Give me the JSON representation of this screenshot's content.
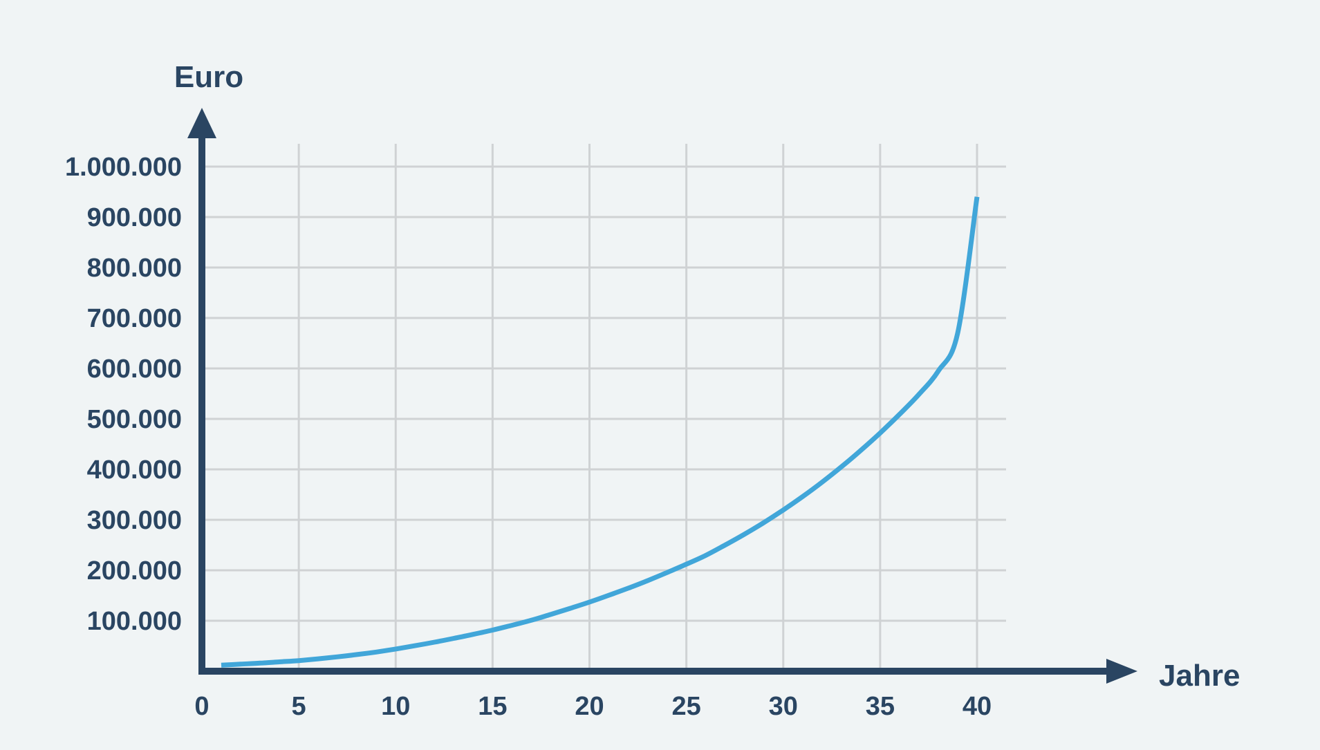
{
  "chart_data": {
    "type": "line",
    "title": "",
    "xlabel": "Jahre",
    "ylabel": "Euro",
    "xlim": [
      0,
      40
    ],
    "ylim": [
      0,
      1000000
    ],
    "x_ticks": [
      0,
      5,
      10,
      15,
      20,
      25,
      30,
      35,
      40
    ],
    "x_tick_labels": [
      "0",
      "5",
      "10",
      "15",
      "20",
      "25",
      "30",
      "35",
      "40"
    ],
    "y_ticks": [
      100000,
      200000,
      300000,
      400000,
      500000,
      600000,
      700000,
      800000,
      900000,
      1000000
    ],
    "y_tick_labels": [
      "100.000",
      "200.000",
      "300.000",
      "400.000",
      "500.000",
      "600.000",
      "700.000",
      "800.000",
      "900.000",
      "1.000.000"
    ],
    "grid": true,
    "legend": "none",
    "series": [
      {
        "color": "#41a6d9",
        "x": [
          1,
          2,
          3,
          4,
          5,
          6,
          7,
          8,
          9,
          10,
          11,
          12,
          13,
          14,
          15,
          16,
          17,
          18,
          19,
          20,
          21,
          22,
          23,
          24,
          25,
          26,
          27,
          28,
          29,
          30,
          31,
          32,
          33,
          34,
          35,
          36,
          37,
          38,
          39,
          40
        ],
        "values": [
          12000,
          14000,
          16000,
          18500,
          21000,
          24500,
          28500,
          33000,
          38000,
          44000,
          50500,
          57500,
          65000,
          73000,
          81500,
          91000,
          101000,
          112500,
          124500,
          137000,
          150500,
          164500,
          179500,
          195500,
          212000,
          229500,
          250000,
          271500,
          294500,
          319500,
          346000,
          374500,
          405000,
          437500,
          472000,
          509000,
          548500,
          595000,
          670000,
          940000
        ]
      }
    ],
    "colors": {
      "axis": "#2a4562",
      "grid": "#cfd2d4",
      "line": "#41a6d9",
      "text": "#2a4562",
      "background": "#f0f4f5"
    }
  }
}
